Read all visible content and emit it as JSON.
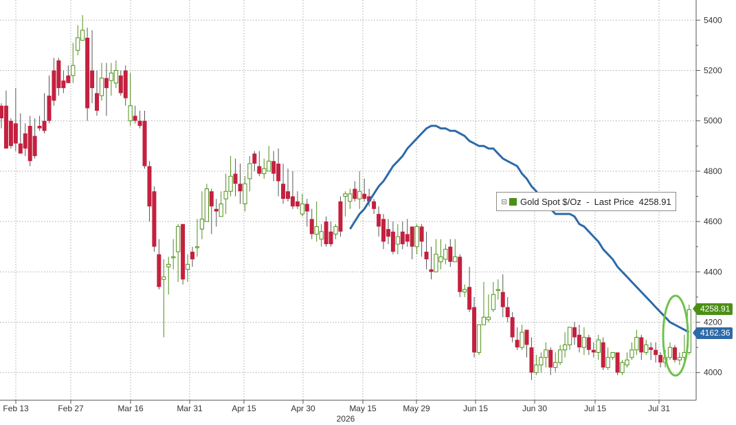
{
  "chart_data": {
    "type": "candlestick",
    "year_label": "2026",
    "x_tick_labels": [
      "Feb 13",
      "Feb 27",
      "Mar 16",
      "Mar 31",
      "Apr 15",
      "Apr 30",
      "May 15",
      "May 29",
      "Jun 15",
      "Jun 30",
      "Jul 15",
      "Jul 31"
    ],
    "y_tick_labels": [
      "4000",
      "4200",
      "4400",
      "4600",
      "4800",
      "5000",
      "5200",
      "5400"
    ],
    "ylim": [
      3890,
      5480
    ],
    "grid": true,
    "legend": {
      "position": "center-right",
      "text": "Gold Spot $/Oz  -  Last Price  4258.91"
    },
    "last_price_label": "4258.91",
    "moving_average_label": "4162.36",
    "colors": {
      "up": "#4d8f16",
      "down": "#c4203f",
      "moving_average": "#2d6aa8",
      "highlight": "#6dc24b",
      "grid": "#a8a8a8"
    },
    "candles": [
      [
        5060,
        5070,
        5010,
        4970
      ],
      [
        5060,
        5120,
        4890,
        5000
      ],
      [
        5000,
        5010,
        4900,
        4890
      ],
      [
        4990,
        5130,
        4910,
        4880
      ],
      [
        4910,
        5030,
        4870,
        4910
      ],
      [
        4950,
        4990,
        4890,
        4860
      ],
      [
        4980,
        5020,
        4840,
        4820
      ],
      [
        4940,
        5010,
        4860,
        4850
      ],
      [
        4980,
        5020,
        4970,
        4960
      ],
      [
        5000,
        5110,
        4960,
        4950
      ],
      [
        5100,
        5180,
        5000,
        4990
      ],
      [
        5200,
        5250,
        5080,
        5060
      ],
      [
        5240,
        5250,
        5130,
        5100
      ],
      [
        5160,
        5200,
        5130,
        5110
      ],
      [
        5180,
        5220,
        5150,
        5150
      ],
      [
        5180,
        5310,
        5220,
        5150
      ],
      [
        5280,
        5380,
        5330,
        5260
      ],
      [
        5320,
        5420,
        5360,
        5330
      ],
      [
        5330,
        5370,
        5050,
        5000
      ],
      [
        5200,
        5360,
        5130,
        5070
      ],
      [
        5110,
        5200,
        5040,
        5020
      ],
      [
        5100,
        5230,
        5170,
        5080
      ],
      [
        5170,
        5230,
        5130,
        5020
      ],
      [
        5160,
        5230,
        5190,
        5100
      ],
      [
        5150,
        5240,
        5200,
        5130
      ],
      [
        5180,
        5200,
        5110,
        5100
      ],
      [
        5200,
        5220,
        5090,
        5060
      ],
      [
        5000,
        5190,
        5060,
        4980
      ],
      [
        5020,
        5060,
        5000,
        4990
      ],
      [
        5000,
        5040,
        4980,
        4970
      ],
      [
        5000,
        5040,
        4820,
        4810
      ],
      [
        4820,
        4840,
        4660,
        4600
      ],
      [
        4720,
        4740,
        4500,
        4480
      ],
      [
        4470,
        4530,
        4340,
        4330
      ],
      [
        4370,
        4450,
        4380,
        4140
      ],
      [
        4420,
        4460,
        4430,
        4310
      ],
      [
        4460,
        4530,
        4460,
        4410
      ],
      [
        4480,
        4590,
        4580,
        4360
      ],
      [
        4590,
        4570,
        4370,
        4350
      ],
      [
        4410,
        4470,
        4430,
        4360
      ],
      [
        4480,
        4500,
        4450,
        4420
      ],
      [
        4500,
        4610,
        4500,
        4460
      ],
      [
        4570,
        4720,
        4610,
        4530
      ],
      [
        4600,
        4750,
        4730,
        4660
      ],
      [
        4720,
        4730,
        4660,
        4550
      ],
      [
        4650,
        4690,
        4640,
        4580
      ],
      [
        4620,
        4720,
        4670,
        4620
      ],
      [
        4690,
        4790,
        4720,
        4630
      ],
      [
        4720,
        4860,
        4780,
        4700
      ],
      [
        4790,
        4850,
        4750,
        4700
      ],
      [
        4750,
        4830,
        4720,
        4670
      ],
      [
        4670,
        4780,
        4750,
        4640
      ],
      [
        4770,
        4860,
        4830,
        4720
      ],
      [
        4870,
        4880,
        4830,
        4800
      ],
      [
        4820,
        4880,
        4790,
        4780
      ],
      [
        4790,
        4850,
        4810,
        4770
      ],
      [
        4800,
        4900,
        4840,
        4800
      ],
      [
        4840,
        4880,
        4790,
        4760
      ],
      [
        4830,
        4890,
        4760,
        4700
      ],
      [
        4750,
        4830,
        4690,
        4670
      ],
      [
        4720,
        4810,
        4690,
        4680
      ],
      [
        4700,
        4800,
        4660,
        4650
      ],
      [
        4680,
        4720,
        4660,
        4650
      ],
      [
        4630,
        4710,
        4670,
        4620
      ],
      [
        4670,
        4690,
        4640,
        4580
      ],
      [
        4610,
        4650,
        4550,
        4530
      ],
      [
        4550,
        4680,
        4580,
        4520
      ],
      [
        4530,
        4590,
        4560,
        4500
      ],
      [
        4600,
        4620,
        4510,
        4500
      ],
      [
        4560,
        4600,
        4510,
        4500
      ],
      [
        4550,
        4590,
        4580,
        4530
      ],
      [
        4680,
        4700,
        4560,
        4540
      ],
      [
        4700,
        4720,
        4710,
        4620
      ],
      [
        4680,
        4730,
        4710,
        4650
      ],
      [
        4730,
        4760,
        4690,
        4680
      ],
      [
        4690,
        4800,
        4720,
        4650
      ],
      [
        4710,
        4770,
        4690,
        4680
      ],
      [
        4700,
        4730,
        4680,
        4660
      ],
      [
        4680,
        4690,
        4650,
        4630
      ],
      [
        4630,
        4660,
        4580,
        4540
      ],
      [
        4610,
        4630,
        4520,
        4490
      ],
      [
        4570,
        4610,
        4540,
        4510
      ],
      [
        4560,
        4600,
        4480,
        4470
      ],
      [
        4510,
        4590,
        4540,
        4470
      ],
      [
        4560,
        4600,
        4510,
        4490
      ],
      [
        4550,
        4610,
        4520,
        4500
      ],
      [
        4580,
        4580,
        4500,
        4450
      ],
      [
        4500,
        4590,
        4580,
        4470
      ],
      [
        4580,
        4590,
        4520,
        4460
      ],
      [
        4480,
        4560,
        4450,
        4410
      ],
      [
        4410,
        4500,
        4400,
        4370
      ],
      [
        4400,
        4530,
        4470,
        4440
      ],
      [
        4440,
        4530,
        4460,
        4410
      ],
      [
        4450,
        4510,
        4490,
        4430
      ],
      [
        4500,
        4530,
        4440,
        4420
      ],
      [
        4440,
        4530,
        4460,
        4440
      ],
      [
        4460,
        4470,
        4320,
        4300
      ],
      [
        4320,
        4350,
        4330,
        4300
      ],
      [
        4340,
        4420,
        4250,
        4240
      ],
      [
        4260,
        4300,
        4080,
        4060
      ],
      [
        4080,
        4110,
        4190,
        4070
      ],
      [
        4190,
        4360,
        4220,
        4190
      ],
      [
        4210,
        4310,
        4220,
        4200
      ],
      [
        4250,
        4360,
        4310,
        4240
      ],
      [
        4330,
        4370,
        4330,
        4290
      ],
      [
        4320,
        4390,
        4260,
        4220
      ],
      [
        4260,
        4300,
        4220,
        4200
      ],
      [
        4220,
        4240,
        4140,
        4120
      ],
      [
        4130,
        4180,
        4100,
        4090
      ],
      [
        4100,
        4190,
        4160,
        4090
      ],
      [
        4170,
        4170,
        4110,
        4060
      ],
      [
        4100,
        4140,
        4000,
        3970
      ],
      [
        4000,
        4070,
        4030,
        3990
      ],
      [
        4030,
        4080,
        4060,
        4000
      ],
      [
        4060,
        4120,
        4090,
        4020
      ],
      [
        4090,
        4100,
        4020,
        3990
      ],
      [
        4020,
        4080,
        4040,
        4000
      ],
      [
        4040,
        4110,
        4090,
        4030
      ],
      [
        4090,
        4160,
        4110,
        4060
      ],
      [
        4110,
        4180,
        4180,
        4090
      ],
      [
        4180,
        4200,
        4140,
        4110
      ],
      [
        4150,
        4190,
        4100,
        4080
      ],
      [
        4100,
        4180,
        4140,
        4070
      ],
      [
        4140,
        4150,
        4090,
        4070
      ],
      [
        4090,
        4120,
        4080,
        4060
      ],
      [
        4080,
        4150,
        4130,
        4050
      ],
      [
        4120,
        4140,
        4020,
        4010
      ],
      [
        4020,
        4100,
        4060,
        4010
      ],
      [
        4060,
        4080,
        4080,
        4050
      ],
      [
        4080,
        4080,
        4000,
        3990
      ],
      [
        4000,
        4050,
        4040,
        3990
      ],
      [
        4030,
        4080,
        4050,
        4020
      ],
      [
        4060,
        4120,
        4090,
        4050
      ],
      [
        4090,
        4170,
        4140,
        4070
      ],
      [
        4140,
        4150,
        4080,
        4050
      ],
      [
        4080,
        4130,
        4110,
        4070
      ],
      [
        4100,
        4120,
        4090,
        4050
      ],
      [
        4090,
        4120,
        4070,
        4040
      ],
      [
        4070,
        4080,
        4040,
        4020
      ],
      [
        4040,
        4090,
        4060,
        4020
      ],
      [
        4060,
        4120,
        4100,
        4050
      ],
      [
        4100,
        4110,
        4050,
        4040
      ],
      [
        4050,
        4080,
        4060,
        4030
      ],
      [
        4060,
        4150,
        4080,
        4040
      ],
      [
        4080,
        4270,
        4250,
        4070
      ]
    ],
    "moving_average": [
      4570,
      4600,
      4630,
      4650,
      4680,
      4710,
      4740,
      4760,
      4790,
      4820,
      4840,
      4860,
      4890,
      4910,
      4930,
      4950,
      4970,
      4980,
      4980,
      4970,
      4970,
      4960,
      4960,
      4950,
      4940,
      4920,
      4910,
      4900,
      4900,
      4890,
      4890,
      4870,
      4850,
      4840,
      4830,
      4820,
      4790,
      4770,
      4740,
      4720,
      4690,
      4670,
      4650,
      4630,
      4630,
      4630,
      4630,
      4620,
      4590,
      4580,
      4560,
      4540,
      4520,
      4490,
      4470,
      4450,
      4420,
      4400,
      4380,
      4360,
      4340,
      4320,
      4300,
      4280,
      4260,
      4240,
      4220,
      4200,
      4190,
      4180,
      4170,
      4160
    ]
  }
}
